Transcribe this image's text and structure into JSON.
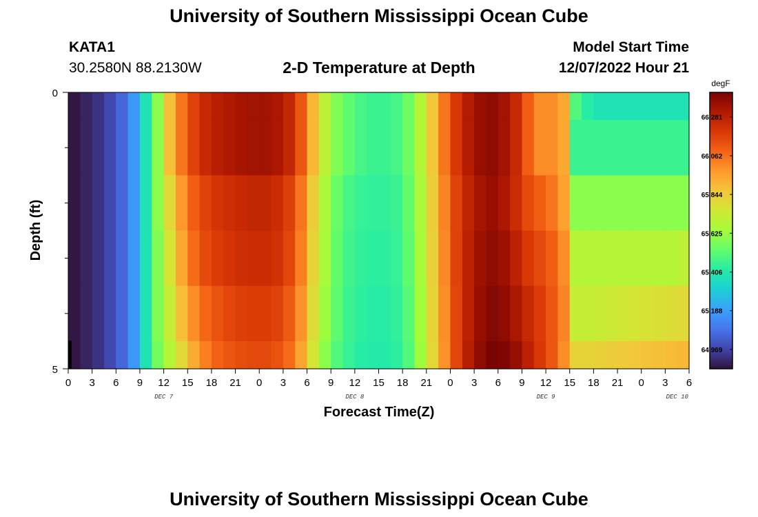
{
  "header": {
    "title": "University of Southern Mississippi Ocean Cube",
    "station": "KATA1",
    "coords": "30.2580N  88.2130W",
    "plot_title": "2-D Temperature at Depth",
    "model_start_label": "Model Start Time",
    "model_start_value": "12/07/2022 Hour 21"
  },
  "footer": {
    "title": "University of Southern Mississippi Ocean Cube"
  },
  "chart_data": {
    "type": "heatmap",
    "xlabel": "Forecast Time(Z)",
    "ylabel": "Depth (ft)",
    "x_tick_labels": [
      "0",
      "3",
      "6",
      "9",
      "12",
      "15",
      "18",
      "21",
      "0",
      "3",
      "6",
      "9",
      "12",
      "15",
      "18",
      "21",
      "0",
      "3",
      "6",
      "9",
      "12",
      "15",
      "18",
      "21",
      "0",
      "3",
      "6"
    ],
    "day_labels": [
      {
        "label": "DEC 7",
        "at_tick": 4
      },
      {
        "label": "DEC 8",
        "at_tick": 12
      },
      {
        "label": "DEC 9",
        "at_tick": 20
      },
      {
        "label": "DEC 10",
        "at_tick": 25.5
      }
    ],
    "y_tick_labels": [
      {
        "depth": 0,
        "label": "0"
      },
      {
        "depth": 5,
        "label": "5"
      }
    ],
    "y_minor_ticks": [
      1,
      2,
      3,
      4
    ],
    "x_range_hours": [
      0,
      78
    ],
    "depth_range_ft": [
      0,
      5
    ],
    "colorbar": {
      "unit": "degF",
      "min": 64.86,
      "max": 66.42,
      "labels": [
        "66.281",
        "66.062",
        "65.844",
        "65.625",
        "65.406",
        "65.188",
        "64.969"
      ],
      "colors": [
        "#30123b",
        "#4145ab",
        "#4675ed",
        "#39a2fc",
        "#1bcfd4",
        "#24eca6",
        "#61fc6c",
        "#a4fc3b",
        "#d1e834",
        "#f3c63a",
        "#fe9b2d",
        "#f36315",
        "#d93806",
        "#b11901",
        "#7a0403"
      ]
    },
    "depth_rows": [
      "0-0.5",
      "0.5-1.5",
      "1.5-2.5",
      "2.5-3.5",
      "3.5-4.5",
      "4.5-5"
    ],
    "values": [
      [
        64.87,
        64.9,
        64.93,
        64.98,
        65.05,
        65.17,
        65.38,
        65.6,
        65.88,
        66.05,
        66.17,
        66.25,
        66.29,
        66.31,
        66.33,
        66.34,
        66.34,
        66.32,
        66.26,
        66.12,
        65.9,
        65.7,
        65.58,
        65.52,
        65.48,
        65.46,
        65.46,
        65.48,
        65.55,
        65.68,
        65.86,
        66.05,
        66.2,
        66.3,
        66.36,
        66.38,
        66.34,
        66.25,
        66.1,
        66.0,
        66.0,
        65.94,
        65.5,
        65.42,
        65.38,
        65.38,
        65.38,
        65.38,
        65.38,
        65.38,
        65.38,
        65.38
      ],
      [
        64.87,
        64.9,
        64.93,
        64.98,
        65.05,
        65.17,
        65.38,
        65.6,
        65.88,
        66.05,
        66.17,
        66.25,
        66.29,
        66.31,
        66.33,
        66.34,
        66.34,
        66.32,
        66.26,
        66.12,
        65.9,
        65.7,
        65.58,
        65.52,
        65.48,
        65.46,
        65.46,
        65.48,
        65.55,
        65.68,
        65.86,
        66.05,
        66.2,
        66.3,
        66.36,
        66.38,
        66.34,
        66.25,
        66.1,
        66.0,
        66.0,
        65.94,
        65.46,
        65.46,
        65.46,
        65.46,
        65.46,
        65.46,
        65.46,
        65.46,
        65.46,
        65.46
      ],
      [
        64.87,
        64.9,
        64.93,
        64.98,
        65.05,
        65.17,
        65.38,
        65.6,
        65.8,
        65.98,
        66.1,
        66.17,
        66.21,
        66.23,
        66.25,
        66.26,
        66.26,
        66.24,
        66.18,
        66.05,
        65.84,
        65.66,
        65.54,
        65.48,
        65.45,
        65.44,
        65.44,
        65.46,
        65.53,
        65.66,
        65.84,
        66.02,
        66.17,
        66.27,
        66.33,
        66.36,
        66.32,
        66.24,
        66.15,
        66.1,
        66.05,
        65.96,
        65.6,
        65.6,
        65.6,
        65.6,
        65.6,
        65.6,
        65.6,
        65.6,
        65.6,
        65.6
      ],
      [
        64.87,
        64.9,
        64.93,
        64.98,
        65.05,
        65.17,
        65.38,
        65.58,
        65.76,
        65.94,
        66.07,
        66.15,
        66.19,
        66.21,
        66.23,
        66.24,
        66.24,
        66.22,
        66.16,
        66.03,
        65.82,
        65.65,
        65.53,
        65.47,
        65.44,
        65.43,
        65.43,
        65.45,
        65.52,
        65.65,
        65.83,
        66.01,
        66.17,
        66.28,
        66.35,
        66.38,
        66.35,
        66.28,
        66.2,
        66.15,
        66.1,
        66.0,
        65.68,
        65.68,
        65.68,
        65.68,
        65.68,
        65.68,
        65.68,
        65.68,
        65.68,
        65.7
      ],
      [
        64.87,
        64.9,
        64.93,
        64.98,
        65.05,
        65.17,
        65.38,
        65.58,
        65.72,
        65.88,
        66.0,
        66.08,
        66.13,
        66.16,
        66.18,
        66.19,
        66.19,
        66.17,
        66.11,
        65.99,
        65.79,
        65.63,
        65.52,
        65.46,
        65.43,
        65.42,
        65.42,
        65.44,
        65.51,
        65.64,
        65.82,
        66.0,
        66.16,
        66.28,
        66.36,
        66.4,
        66.38,
        66.32,
        66.25,
        66.19,
        66.12,
        66.02,
        65.72,
        65.72,
        65.73,
        65.74,
        65.75,
        65.76,
        65.77,
        65.78,
        65.79,
        65.8
      ],
      [
        64.87,
        64.9,
        64.93,
        64.98,
        65.05,
        65.17,
        65.38,
        65.56,
        65.68,
        65.8,
        65.93,
        66.03,
        66.09,
        66.12,
        66.14,
        66.15,
        66.15,
        66.13,
        66.07,
        65.95,
        65.76,
        65.6,
        65.5,
        65.45,
        65.42,
        65.41,
        65.41,
        65.43,
        65.5,
        65.63,
        65.81,
        65.99,
        66.16,
        66.29,
        66.38,
        66.42,
        66.41,
        66.36,
        66.28,
        66.2,
        66.12,
        66.0,
        65.82,
        65.82,
        65.83,
        65.84,
        65.85,
        65.86,
        65.87,
        65.88,
        65.89,
        65.9
      ]
    ]
  }
}
